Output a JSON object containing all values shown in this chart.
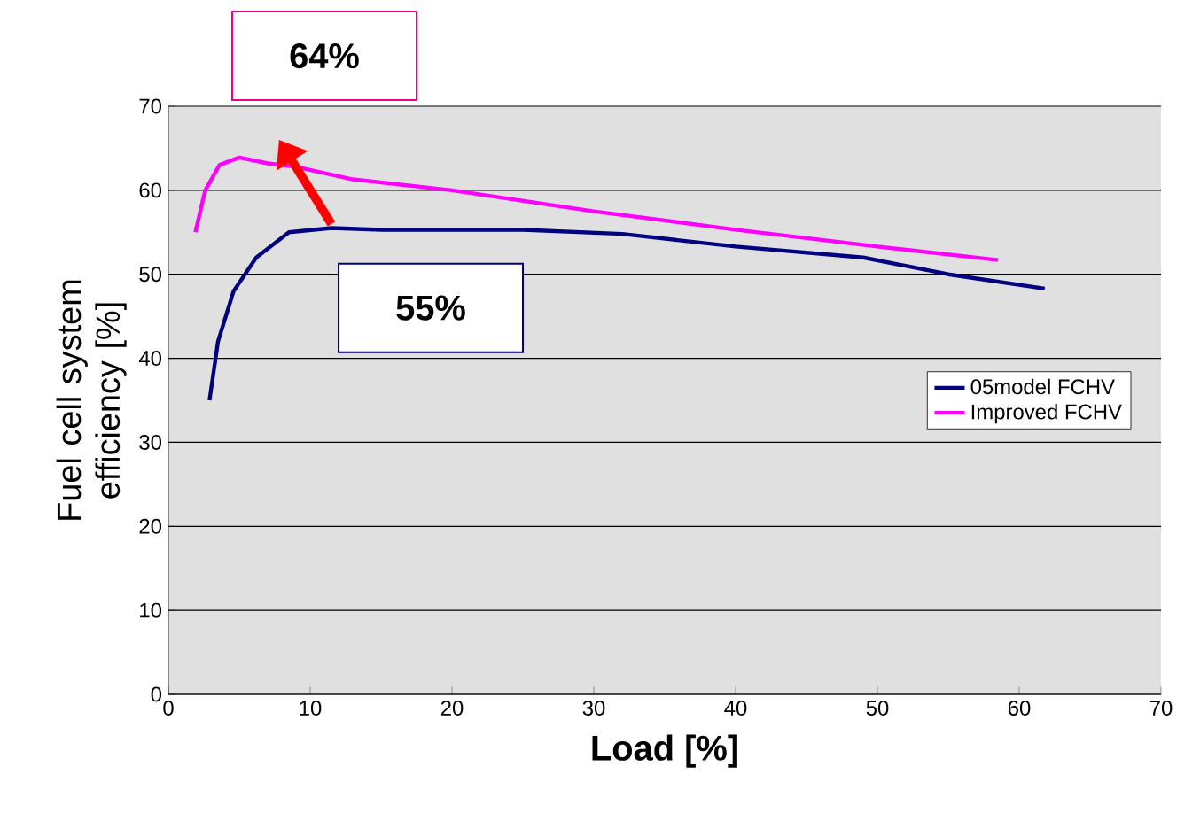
{
  "chart_data": {
    "type": "line",
    "xlabel": "Load [%]",
    "ylabel": "Fuel cell system efficiency [%]",
    "xlim": [
      0,
      70
    ],
    "ylim": [
      0,
      70
    ],
    "xticks": [
      0,
      10,
      20,
      30,
      40,
      50,
      60,
      70
    ],
    "yticks": [
      0,
      10,
      20,
      30,
      40,
      50,
      60,
      70
    ],
    "grid": "y",
    "legend": "right",
    "marker": "none",
    "line_style": "solid",
    "annotations": [
      "64%",
      "55%"
    ],
    "series": [
      {
        "name": "05model FCHV",
        "color": "#000080",
        "x": [
          2.9,
          3.5,
          4.6,
          6.2,
          8.5,
          11.5,
          15,
          25,
          32,
          40,
          49,
          55,
          61.8
        ],
        "values": [
          35,
          42,
          48,
          52,
          55,
          55.5,
          55.3,
          55.3,
          54.8,
          53.3,
          52,
          50,
          48.3
        ]
      },
      {
        "name": "Improved FCHV",
        "color": "#ff00ff",
        "x": [
          1.9,
          2.6,
          3.6,
          5,
          7,
          9,
          13,
          20,
          30,
          40,
          50,
          58.5
        ],
        "values": [
          55,
          60,
          63,
          63.9,
          63.2,
          62.8,
          61.3,
          60,
          57.5,
          55.3,
          53.3,
          51.7
        ]
      }
    ]
  }
}
